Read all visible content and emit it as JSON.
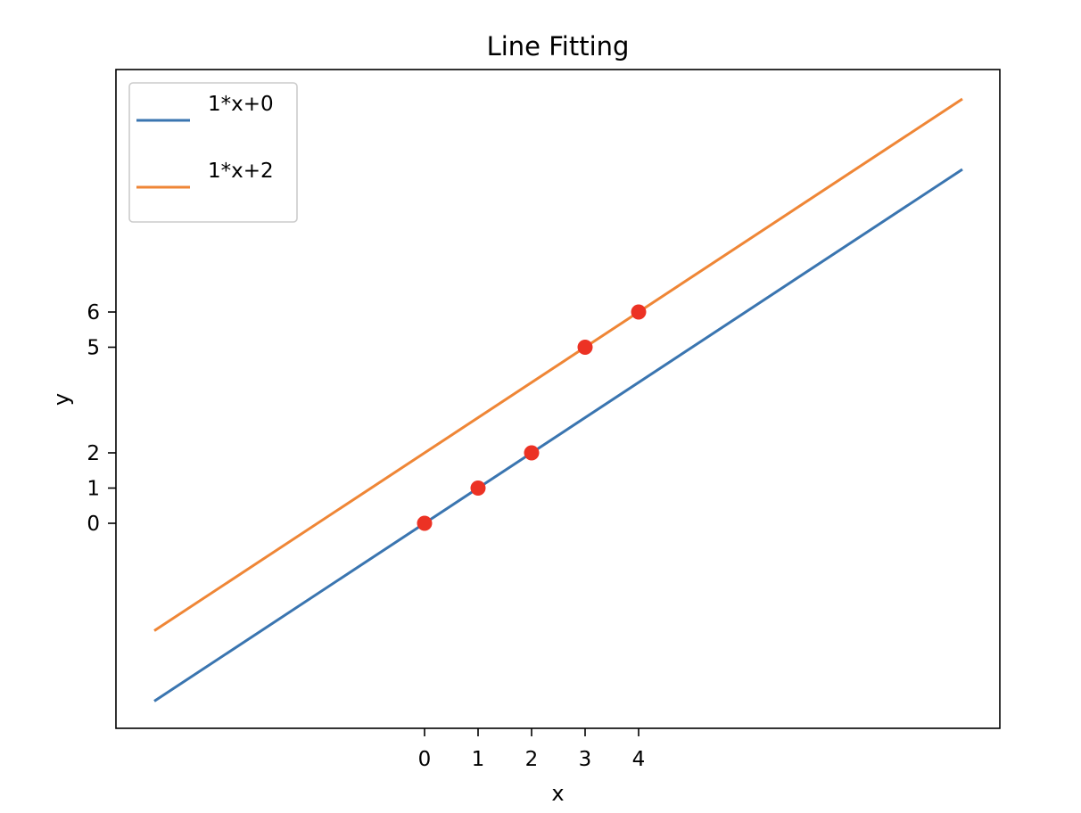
{
  "chart_data": {
    "type": "line",
    "title": "Line Fitting",
    "xlabel": "x",
    "ylabel": "y",
    "x_ticks": [
      0,
      1,
      2,
      3,
      4
    ],
    "y_ticks": [
      0,
      1,
      2,
      5,
      6
    ],
    "points": [
      {
        "x": 0,
        "y": 0
      },
      {
        "x": 1,
        "y": 1
      },
      {
        "x": 2,
        "y": 2
      },
      {
        "x": 3,
        "y": 5
      },
      {
        "x": 4,
        "y": 6
      }
    ],
    "series": [
      {
        "name": "1*x+0",
        "color": "#3a75b0",
        "x": [
          -5.05,
          10.05
        ],
        "y": [
          -5.05,
          10.05
        ]
      },
      {
        "name": "1*x+2",
        "color": "#ef8636",
        "x": [
          -5.05,
          10.05
        ],
        "y": [
          -3.05,
          12.05
        ]
      }
    ],
    "point_color": "#ec3224",
    "legend_position": "upper-left",
    "grid": false
  }
}
